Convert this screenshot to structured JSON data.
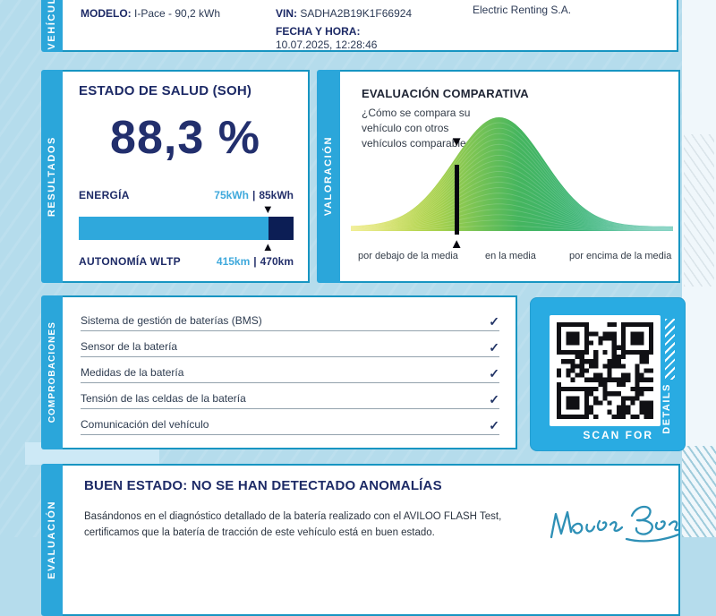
{
  "vehicle": {
    "tab": "VEHÍCULO",
    "modelo_label": "MODELO:",
    "modelo_value": "I-Pace - 90,2 kWh",
    "vin_label": "VIN:",
    "vin_value": "SADHA2B19K1F66924",
    "fecha_label": "FECHA Y HORA:",
    "fecha_value": "10.07.2025, 12:28:46",
    "company": "Electric Renting S.A."
  },
  "results": {
    "tab": "RESULTADOS",
    "soh_title": "ESTADO DE SALUD (SOH)",
    "soh_value": "88,3 %",
    "energia_label": "ENERGÍA",
    "energia_current": "75kWh",
    "energia_total": "85kWh",
    "autonomia_label": "AUTONOMÍA WLTP",
    "autonomia_current": "415km",
    "autonomia_total": "470km",
    "value_separator": "|",
    "bar_percent": 88.3
  },
  "valoracion": {
    "tab": "VALORACIÓN",
    "title": "EVALUACIÓN COMPARATIVA",
    "subtitle_lines": [
      "¿Cómo se compara su",
      "vehículo con otros",
      "vehículos comparables?"
    ]
  },
  "chart_data": {
    "type": "area",
    "title": "EVALUACIÓN COMPARATIVA",
    "distribution": "normal",
    "x_axis_labels": [
      "por debajo de la media",
      "en la media",
      "por encima de la media"
    ],
    "peak_position_pct": 46,
    "sigma_pct": 14,
    "marker_position_pct": 33,
    "marker_meaning": "vehicle position vs comparable vehicles",
    "gradient_colors": [
      "#e9e44f",
      "#a4d04d",
      "#45b55e",
      "#2cb49b"
    ],
    "grid": false,
    "legend": false
  },
  "comprobaciones": {
    "tab": "COMPROBACIONES",
    "items": [
      {
        "label": "Sistema de gestión de baterías (BMS)",
        "checked": true
      },
      {
        "label": "Sensor de la batería",
        "checked": true
      },
      {
        "label": "Medidas de la batería",
        "checked": true
      },
      {
        "label": "Tensión de las celdas de la batería",
        "checked": true
      },
      {
        "label": "Comunicación del vehículo",
        "checked": true
      }
    ]
  },
  "qr": {
    "scan_label": "SCAN FOR",
    "details_label": "DETAILS"
  },
  "evaluacion": {
    "tab": "EVALUACIÓN",
    "title": "BUEN ESTADO: NO SE HAN DETECTADO ANOMALÍAS",
    "body_line1": "Basándonos en el diagnóstico detallado de la batería realizado con el AVILOO FLASH Test,",
    "body_line2": "certificamos que la batería de tracción de este vehículo está en buen estado.",
    "signature_name": "Marcus Berger"
  },
  "colors": {
    "background": "#b5dcec",
    "tab_blue": "#2ba6da",
    "card_border": "#1795c2",
    "navy_text": "#1d2a66",
    "bar_light_blue": "#2fa8dc",
    "bar_dark_navy": "#0c1e55",
    "qr_panel_blue": "#29abe2",
    "signature_ink": "#2e90b6"
  }
}
